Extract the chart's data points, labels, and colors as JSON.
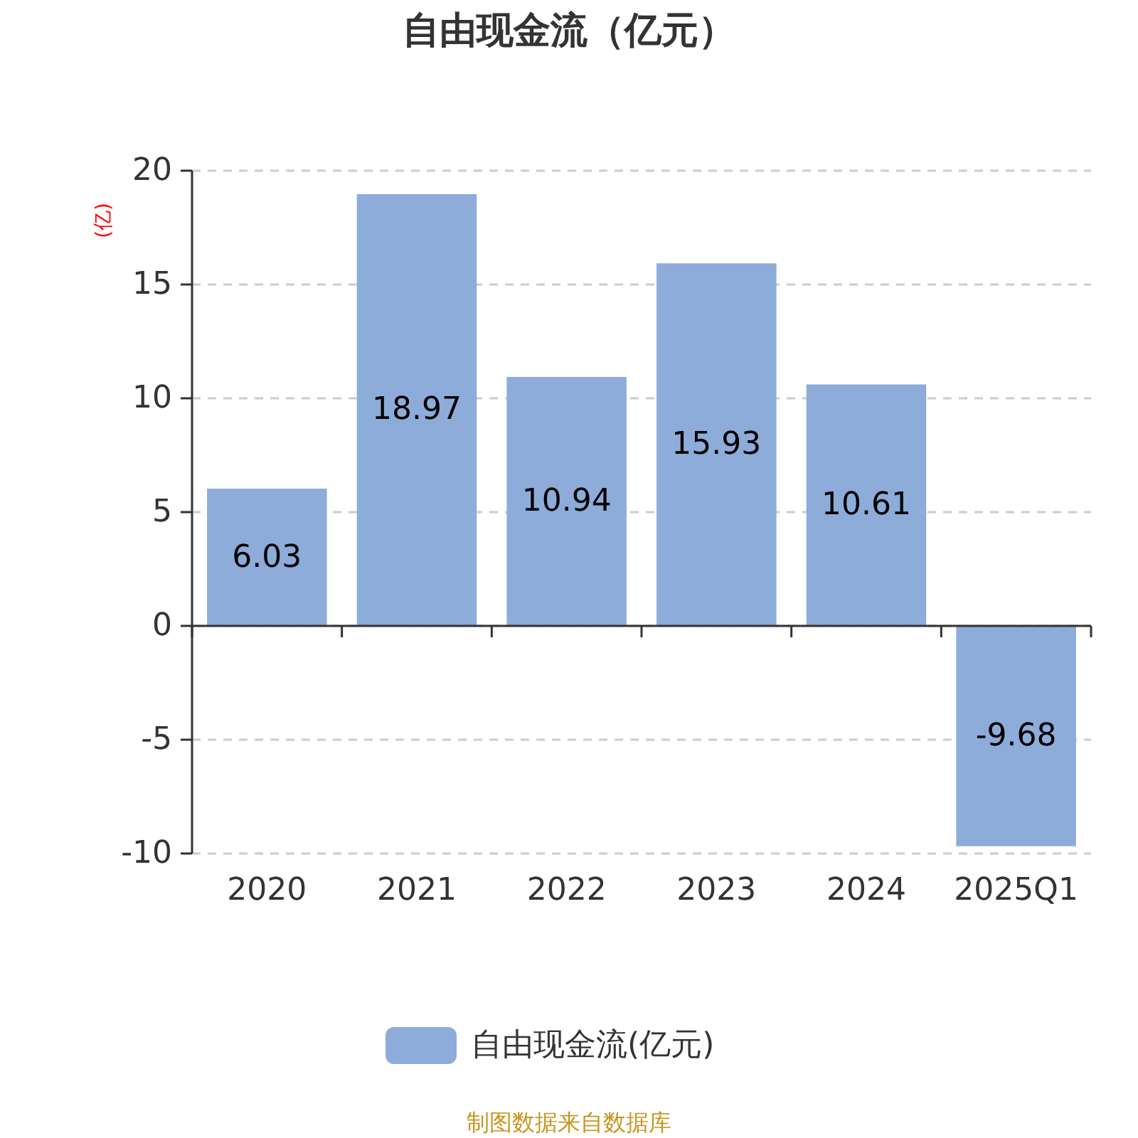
{
  "chart_data": {
    "type": "bar",
    "title": "自由现金流（亿元）",
    "ylabel": "(亿)",
    "categories": [
      "2020",
      "2021",
      "2022",
      "2023",
      "2024",
      "2025Q1"
    ],
    "series": [
      {
        "name": "自由现金流(亿元)",
        "color": "#8eacd9",
        "values": [
          6.03,
          18.97,
          10.94,
          15.93,
          10.61,
          -9.68
        ]
      }
    ],
    "ylim": [
      -10,
      20
    ],
    "yticks": [
      -10,
      -5,
      0,
      5,
      10,
      15,
      20
    ],
    "grid": "y",
    "legend": "bottom",
    "data_labels": true,
    "annotations": [
      "制图数据来自数据库"
    ]
  }
}
